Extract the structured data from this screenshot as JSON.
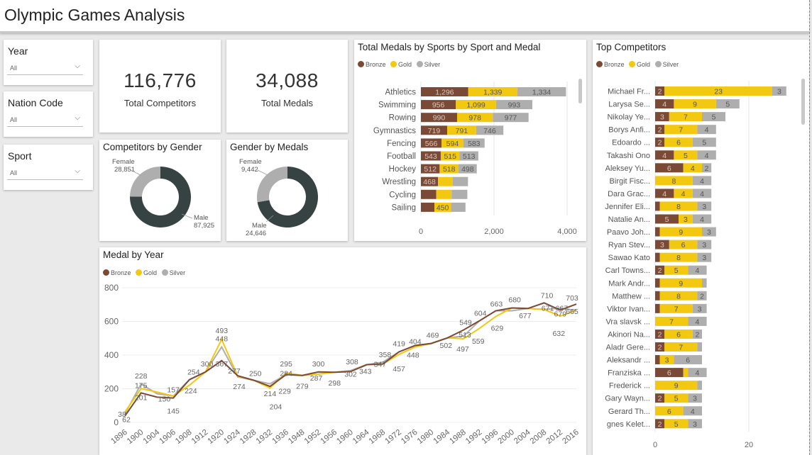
{
  "header": {
    "title": "Olympic Games Analysis"
  },
  "slicers": [
    {
      "label": "Year",
      "value": "All"
    },
    {
      "label": "Nation Code",
      "value": "All"
    },
    {
      "label": "Sport",
      "value": "All"
    }
  ],
  "cards": [
    {
      "value": "116,776",
      "caption": "Total Competitors"
    },
    {
      "value": "34,088",
      "caption": "Total Medals"
    }
  ],
  "colors": {
    "bronze": "#7b4a36",
    "gold": "#f2c811",
    "silver": "#aeaeae",
    "donut_dark": "#374242",
    "donut_light": "#aeaeae"
  },
  "legend": {
    "bronze": "Bronze",
    "gold": "Gold",
    "silver": "Silver"
  },
  "chart_data": [
    {
      "type": "pie",
      "title": "Competitors by Gender",
      "slices": [
        {
          "label": "Female",
          "value": 28851,
          "display": "28,851"
        },
        {
          "label": "Male",
          "value": 87925,
          "display": "87,925"
        }
      ]
    },
    {
      "type": "pie",
      "title": "Gender by Medals",
      "slices": [
        {
          "label": "Female",
          "value": 9442,
          "display": "9,442"
        },
        {
          "label": "Male",
          "value": 24646,
          "display": "24,646"
        }
      ]
    },
    {
      "type": "bar",
      "title": "Total Medals by Sports by Sport and Medal",
      "orientation": "horizontal-stacked",
      "categories": [
        "Athletics",
        "Swimming",
        "Rowing",
        "Gymnastics",
        "Fencing",
        "Football",
        "Hockey",
        "Wrestling",
        "Cycling",
        "Sailing"
      ],
      "series": [
        {
          "name": "Bronze",
          "values": [
            1296,
            956,
            990,
            719,
            566,
            543,
            512,
            468,
            420,
            370
          ]
        },
        {
          "name": "Gold",
          "values": [
            1339,
            1099,
            978,
            791,
            594,
            515,
            518,
            400,
            420,
            450
          ]
        },
        {
          "name": "Silver",
          "values": [
            1334,
            993,
            977,
            746,
            583,
            513,
            498,
            420,
            430,
            400
          ]
        }
      ],
      "labels": [
        [
          "1,296",
          "956",
          "990",
          "719",
          "566",
          "543",
          "512",
          "468",
          "",
          ""
        ],
        [
          "1,339",
          "1,099",
          "978",
          "791",
          "594",
          "515",
          "518",
          "",
          "",
          "450"
        ],
        [
          "1,334",
          "993",
          "977",
          "746",
          "583",
          "513",
          "498",
          "",
          "",
          ""
        ]
      ],
      "xticks": [
        "0",
        "2,000",
        "4,000"
      ],
      "xlim": [
        0,
        4300
      ]
    },
    {
      "type": "bar",
      "title": "Top Competitors",
      "orientation": "horizontal-stacked",
      "categories": [
        "Michael Fr...",
        "Larysa Se...",
        "Nikolay Ye...",
        "Borys Anfi...",
        "Edoardo ...",
        "Takashi Ono",
        "Aleksey Yu...",
        "Birgit Fisc...",
        "Dara Grac...",
        "Jennifer Eli...",
        "Natalie An...",
        "Paavo Joh...",
        "Ryan Stev...",
        "Sawao Kato",
        "Carl Towns...",
        "Mark Andr...",
        "Matthew ...",
        "Viktor Ivan...",
        "Vra slavsk ...",
        "Akinori Na...",
        "Aladr Gere...",
        "Aleksandr ...",
        "Franziska ...",
        "Frederick ...",
        "Gary Wayn...",
        "Gerard Th...",
        "gnes Kelet..."
      ],
      "series": [
        {
          "name": "Bronze",
          "values": [
            2,
            4,
            3,
            2,
            2,
            4,
            6,
            0,
            4,
            1,
            5,
            1,
            3,
            1,
            2,
            1,
            1,
            1,
            0,
            2,
            2,
            1,
            6,
            0,
            2,
            0,
            2
          ]
        },
        {
          "name": "Gold",
          "values": [
            23,
            9,
            7,
            7,
            6,
            5,
            4,
            8,
            4,
            8,
            3,
            9,
            6,
            8,
            5,
            9,
            8,
            7,
            7,
            6,
            7,
            3,
            1,
            9,
            5,
            6,
            5
          ]
        },
        {
          "name": "Silver",
          "values": [
            3,
            5,
            5,
            4,
            5,
            4,
            2,
            4,
            4,
            3,
            4,
            3,
            3,
            3,
            4,
            1,
            2,
            3,
            4,
            2,
            1,
            6,
            4,
            1,
            3,
            4,
            3
          ]
        }
      ],
      "labels": [
        [
          "2",
          "4",
          "3",
          "2",
          "2",
          "4",
          "6",
          "",
          "4",
          "",
          "5",
          "",
          "3",
          "",
          "2",
          "",
          "",
          "",
          "",
          "2",
          "2",
          "",
          "6",
          "",
          "2",
          "",
          "2"
        ],
        [
          "23",
          "9",
          "7",
          "7",
          "6",
          "5",
          "4",
          "8",
          "4",
          "8",
          "3",
          "9",
          "6",
          "8",
          "5",
          "9",
          "8",
          "7",
          "7",
          "6",
          "7",
          "3",
          "",
          "9",
          "5",
          "6",
          "5"
        ],
        [
          "3",
          "5",
          "5",
          "4",
          "5",
          "4",
          "2",
          "4",
          "4",
          "3",
          "4",
          "3",
          "3",
          "3",
          "4",
          "",
          "2",
          "3",
          "4",
          "2",
          "",
          "6",
          "4",
          "",
          "3",
          "4",
          "3"
        ]
      ],
      "xticks": [
        "0",
        "20"
      ],
      "xlim": [
        0,
        30
      ]
    },
    {
      "type": "line",
      "title": "Medal by Year",
      "x": [
        "1896",
        "1900",
        "1904",
        "1906",
        "1908",
        "1912",
        "1920",
        "1924",
        "1928",
        "1932",
        "1936",
        "1948",
        "1952",
        "1956",
        "1960",
        "1964",
        "1968",
        "1972",
        "1976",
        "1980",
        "1984",
        "1988",
        "1992",
        "1996",
        "2000",
        "2004",
        "2008",
        "2012",
        "2016"
      ],
      "series": [
        {
          "name": "Bronze",
          "values": [
            38,
            175,
            150,
            145,
            254,
            300,
            367,
            277,
            250,
            214,
            284,
            279,
            300,
            298,
            302,
            343,
            347,
            419,
            457,
            469,
            502,
            549,
            604,
            663,
            680,
            677,
            710,
            667,
            703
          ]
        },
        {
          "name": "Gold",
          "values": [
            62,
            201,
            180,
            157,
            221,
            300,
            493,
            274,
            250,
            204,
            295,
            279,
            287,
            298,
            302,
            343,
            347,
            404,
            448,
            469,
            502,
            497,
            559,
            629,
            680,
            677,
            671,
            632,
            665
          ]
        },
        {
          "name": "Silver",
          "values": [
            50,
            228,
            170,
            157,
            254,
            300,
            448,
            270,
            250,
            229,
            284,
            279,
            287,
            298,
            308,
            343,
            358,
            419,
            457,
            469,
            502,
            513,
            604,
            663,
            663,
            677,
            671,
            679,
            665
          ]
        }
      ],
      "yticks": [
        0,
        200,
        400,
        600,
        800
      ],
      "ylim": [
        0,
        800
      ],
      "annotations": [
        "38",
        "62",
        "228",
        "175",
        "201",
        "150",
        "145",
        "157",
        "254",
        "224",
        "300",
        "493",
        "448",
        "367",
        "277",
        "274",
        "250",
        "214",
        "204",
        "295",
        "284",
        "229",
        "279",
        "300",
        "287",
        "298",
        "308",
        "302",
        "343",
        "358",
        "347",
        "419",
        "457",
        "404",
        "448",
        "469",
        "502",
        "549",
        "513",
        "497",
        "604",
        "559",
        "663",
        "629",
        "680",
        "677",
        "710",
        "671",
        "667",
        "679",
        "632",
        "703",
        "665"
      ]
    }
  ]
}
